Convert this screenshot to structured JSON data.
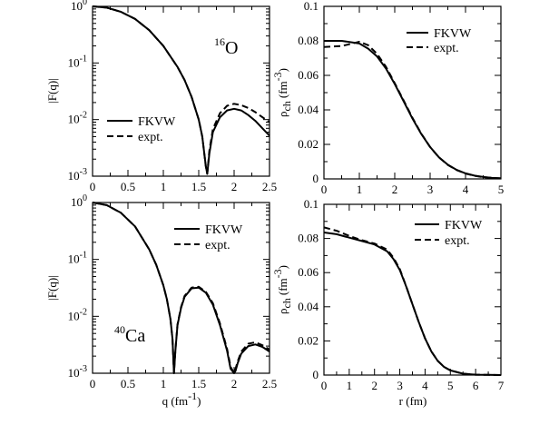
{
  "figure_title": "",
  "chart_data": [
    {
      "id": "o16_formfactor",
      "type": "line",
      "nucleus": {
        "mass_number": "16",
        "element": "O"
      },
      "xlabel": "",
      "ylabel": "|F(q)|",
      "xlim": [
        0,
        2.5
      ],
      "ylim": [
        0.001,
        1
      ],
      "yscale": "log",
      "xticks": [
        "0",
        "0.5",
        "1",
        "1.5",
        "2",
        "2.5"
      ],
      "yticks": [
        {
          "base": "10",
          "exp": "0"
        },
        {
          "base": "10",
          "exp": "-1"
        },
        {
          "base": "10",
          "exp": "-2"
        },
        {
          "base": "10",
          "exp": "-3"
        }
      ],
      "legend": {
        "position": "lower-left",
        "entries": [
          {
            "label": "FKVW",
            "style": "solid"
          },
          {
            "label": "expt.",
            "style": "dashed"
          }
        ]
      },
      "series": [
        {
          "name": "FKVW",
          "style": "solid",
          "x": [
            0,
            0.2,
            0.4,
            0.6,
            0.8,
            1.0,
            1.2,
            1.3,
            1.4,
            1.5,
            1.55,
            1.6,
            1.62,
            1.65,
            1.7,
            1.8,
            1.9,
            2.0,
            2.1,
            2.2,
            2.3,
            2.4,
            2.5
          ],
          "y": [
            1,
            0.95,
            0.8,
            0.6,
            0.38,
            0.2,
            0.085,
            0.05,
            0.025,
            0.01,
            0.005,
            0.0015,
            0.0011,
            0.0025,
            0.006,
            0.011,
            0.0145,
            0.0155,
            0.0145,
            0.012,
            0.0095,
            0.007,
            0.0052
          ]
        },
        {
          "name": "expt.",
          "style": "dashed",
          "x": [
            0,
            0.2,
            0.4,
            0.6,
            0.8,
            1.0,
            1.2,
            1.3,
            1.4,
            1.5,
            1.55,
            1.6,
            1.62,
            1.65,
            1.7,
            1.8,
            1.9,
            2.0,
            2.1,
            2.2,
            2.3,
            2.4,
            2.5
          ],
          "y": [
            1,
            0.95,
            0.8,
            0.6,
            0.38,
            0.2,
            0.085,
            0.05,
            0.025,
            0.01,
            0.005,
            0.0015,
            0.0011,
            0.0028,
            0.0068,
            0.013,
            0.0175,
            0.019,
            0.018,
            0.016,
            0.0135,
            0.011,
            0.009
          ]
        }
      ]
    },
    {
      "id": "o16_density",
      "type": "line",
      "xlabel": "",
      "ylabel": {
        "rho": "ρ",
        "sub": "ch",
        "unit": "(fm",
        "unit_exp": "-3",
        "close": ")"
      },
      "xlim": [
        0,
        5
      ],
      "ylim": [
        0,
        0.1
      ],
      "xticks": [
        "0",
        "1",
        "2",
        "3",
        "4",
        "5"
      ],
      "yticks": [
        "0",
        "0.02",
        "0.04",
        "0.06",
        "0.08",
        "0.1"
      ],
      "legend": {
        "position": "top-right",
        "entries": [
          {
            "label": "FKVW",
            "style": "solid"
          },
          {
            "label": "expt.",
            "style": "dashed"
          }
        ]
      },
      "series": [
        {
          "name": "FKVW",
          "style": "solid",
          "x": [
            0,
            0.5,
            1.0,
            1.25,
            1.5,
            1.75,
            2.0,
            2.25,
            2.5,
            2.75,
            3.0,
            3.25,
            3.5,
            3.75,
            4.0,
            4.25,
            4.5,
            4.75,
            5.0
          ],
          "y": [
            0.08,
            0.08,
            0.0785,
            0.0755,
            0.071,
            0.064,
            0.055,
            0.045,
            0.035,
            0.026,
            0.0185,
            0.0125,
            0.0082,
            0.0052,
            0.0032,
            0.0019,
            0.0011,
            0.0006,
            0.0003
          ]
        },
        {
          "name": "expt.",
          "style": "dashed",
          "x": [
            0,
            0.5,
            1.0,
            1.25,
            1.5,
            1.75,
            2.0,
            2.25,
            2.5,
            2.75,
            3.0,
            3.25,
            3.5,
            3.75,
            4.0,
            4.25,
            4.5,
            4.75,
            5.0
          ],
          "y": [
            0.0765,
            0.077,
            0.0795,
            0.0775,
            0.0725,
            0.065,
            0.0555,
            0.0455,
            0.0355,
            0.0262,
            0.0185,
            0.0124,
            0.0081,
            0.0051,
            0.0031,
            0.0018,
            0.001,
            0.0006,
            0.0003
          ]
        }
      ]
    },
    {
      "id": "ca40_formfactor",
      "type": "line",
      "nucleus": {
        "mass_number": "40",
        "element": "Ca"
      },
      "xlabel": {
        "text": "q (fm",
        "exp": "-1",
        "close": ")"
      },
      "ylabel": "|F(q)|",
      "xlim": [
        0,
        2.5
      ],
      "ylim": [
        0.001,
        1
      ],
      "yscale": "log",
      "xticks": [
        "0",
        "0.5",
        "1",
        "1.5",
        "2",
        "2.5"
      ],
      "yticks": [
        {
          "base": "10",
          "exp": "0"
        },
        {
          "base": "10",
          "exp": "-1"
        },
        {
          "base": "10",
          "exp": "-2"
        },
        {
          "base": "10",
          "exp": "-3"
        }
      ],
      "legend": {
        "position": "top-right",
        "entries": [
          {
            "label": "FKVW",
            "style": "solid"
          },
          {
            "label": "expt.",
            "style": "dashed"
          }
        ]
      },
      "series": [
        {
          "name": "FKVW",
          "style": "solid",
          "x": [
            0,
            0.2,
            0.4,
            0.6,
            0.8,
            0.9,
            1.0,
            1.05,
            1.1,
            1.13,
            1.15,
            1.17,
            1.2,
            1.25,
            1.3,
            1.4,
            1.5,
            1.6,
            1.7,
            1.8,
            1.9,
            1.95,
            2.0,
            2.02,
            2.05,
            2.1,
            2.2,
            2.3,
            2.4,
            2.5
          ],
          "y": [
            1,
            0.9,
            0.66,
            0.38,
            0.15,
            0.08,
            0.035,
            0.02,
            0.009,
            0.004,
            0.001,
            0.0025,
            0.007,
            0.014,
            0.022,
            0.031,
            0.032,
            0.026,
            0.016,
            0.007,
            0.0025,
            0.0012,
            0.001,
            0.0011,
            0.0015,
            0.0022,
            0.003,
            0.0032,
            0.0029,
            0.0024
          ]
        },
        {
          "name": "expt.",
          "style": "dashed",
          "x": [
            0,
            0.2,
            0.4,
            0.6,
            0.8,
            0.9,
            1.0,
            1.05,
            1.1,
            1.13,
            1.15,
            1.17,
            1.2,
            1.25,
            1.3,
            1.4,
            1.5,
            1.6,
            1.7,
            1.8,
            1.9,
            1.95,
            2.0,
            2.02,
            2.05,
            2.1,
            2.2,
            2.3,
            2.4,
            2.5
          ],
          "y": [
            1,
            0.9,
            0.66,
            0.38,
            0.15,
            0.08,
            0.035,
            0.02,
            0.009,
            0.004,
            0.001,
            0.0026,
            0.0072,
            0.0145,
            0.0228,
            0.032,
            0.033,
            0.027,
            0.017,
            0.0075,
            0.0027,
            0.0013,
            0.001,
            0.0012,
            0.0016,
            0.0024,
            0.0033,
            0.0035,
            0.0031,
            0.0026
          ]
        }
      ]
    },
    {
      "id": "ca40_density",
      "type": "line",
      "xlabel": "r (fm)",
      "ylabel": {
        "rho": "ρ",
        "sub": "ch",
        "unit": "(fm",
        "unit_exp": "-3",
        "close": ")"
      },
      "xlim": [
        0,
        7
      ],
      "ylim": [
        0,
        0.1
      ],
      "xticks": [
        "0",
        "1",
        "2",
        "3",
        "4",
        "5",
        "6",
        "7"
      ],
      "yticks": [
        "0",
        "0.02",
        "0.04",
        "0.06",
        "0.08",
        "0.1"
      ],
      "legend": {
        "position": "top-right",
        "entries": [
          {
            "label": "FKVW",
            "style": "solid"
          },
          {
            "label": "expt.",
            "style": "dashed"
          }
        ]
      },
      "series": [
        {
          "name": "FKVW",
          "style": "solid",
          "x": [
            0,
            0.5,
            1.0,
            1.5,
            2.0,
            2.5,
            2.75,
            3.0,
            3.25,
            3.5,
            3.75,
            4.0,
            4.25,
            4.5,
            4.75,
            5.0,
            5.5,
            6.0,
            6.5,
            7.0
          ],
          "y": [
            0.0835,
            0.0825,
            0.0805,
            0.0785,
            0.0765,
            0.0725,
            0.068,
            0.0615,
            0.052,
            0.0415,
            0.031,
            0.0215,
            0.0138,
            0.0083,
            0.0048,
            0.0027,
            0.0008,
            0.0002,
            0.0001,
            0
          ]
        },
        {
          "name": "expt.",
          "style": "dashed",
          "x": [
            0,
            0.5,
            1.0,
            1.5,
            2.0,
            2.5,
            2.75,
            3.0,
            3.25,
            3.5,
            3.75,
            4.0,
            4.25,
            4.5,
            4.75,
            5.0,
            5.5,
            6.0,
            6.5,
            7.0
          ],
          "y": [
            0.0865,
            0.0845,
            0.0815,
            0.079,
            0.077,
            0.0735,
            0.0688,
            0.062,
            0.0522,
            0.0415,
            0.031,
            0.0215,
            0.0138,
            0.0083,
            0.0048,
            0.0027,
            0.0008,
            0.0002,
            0.0001,
            0
          ]
        }
      ]
    }
  ]
}
